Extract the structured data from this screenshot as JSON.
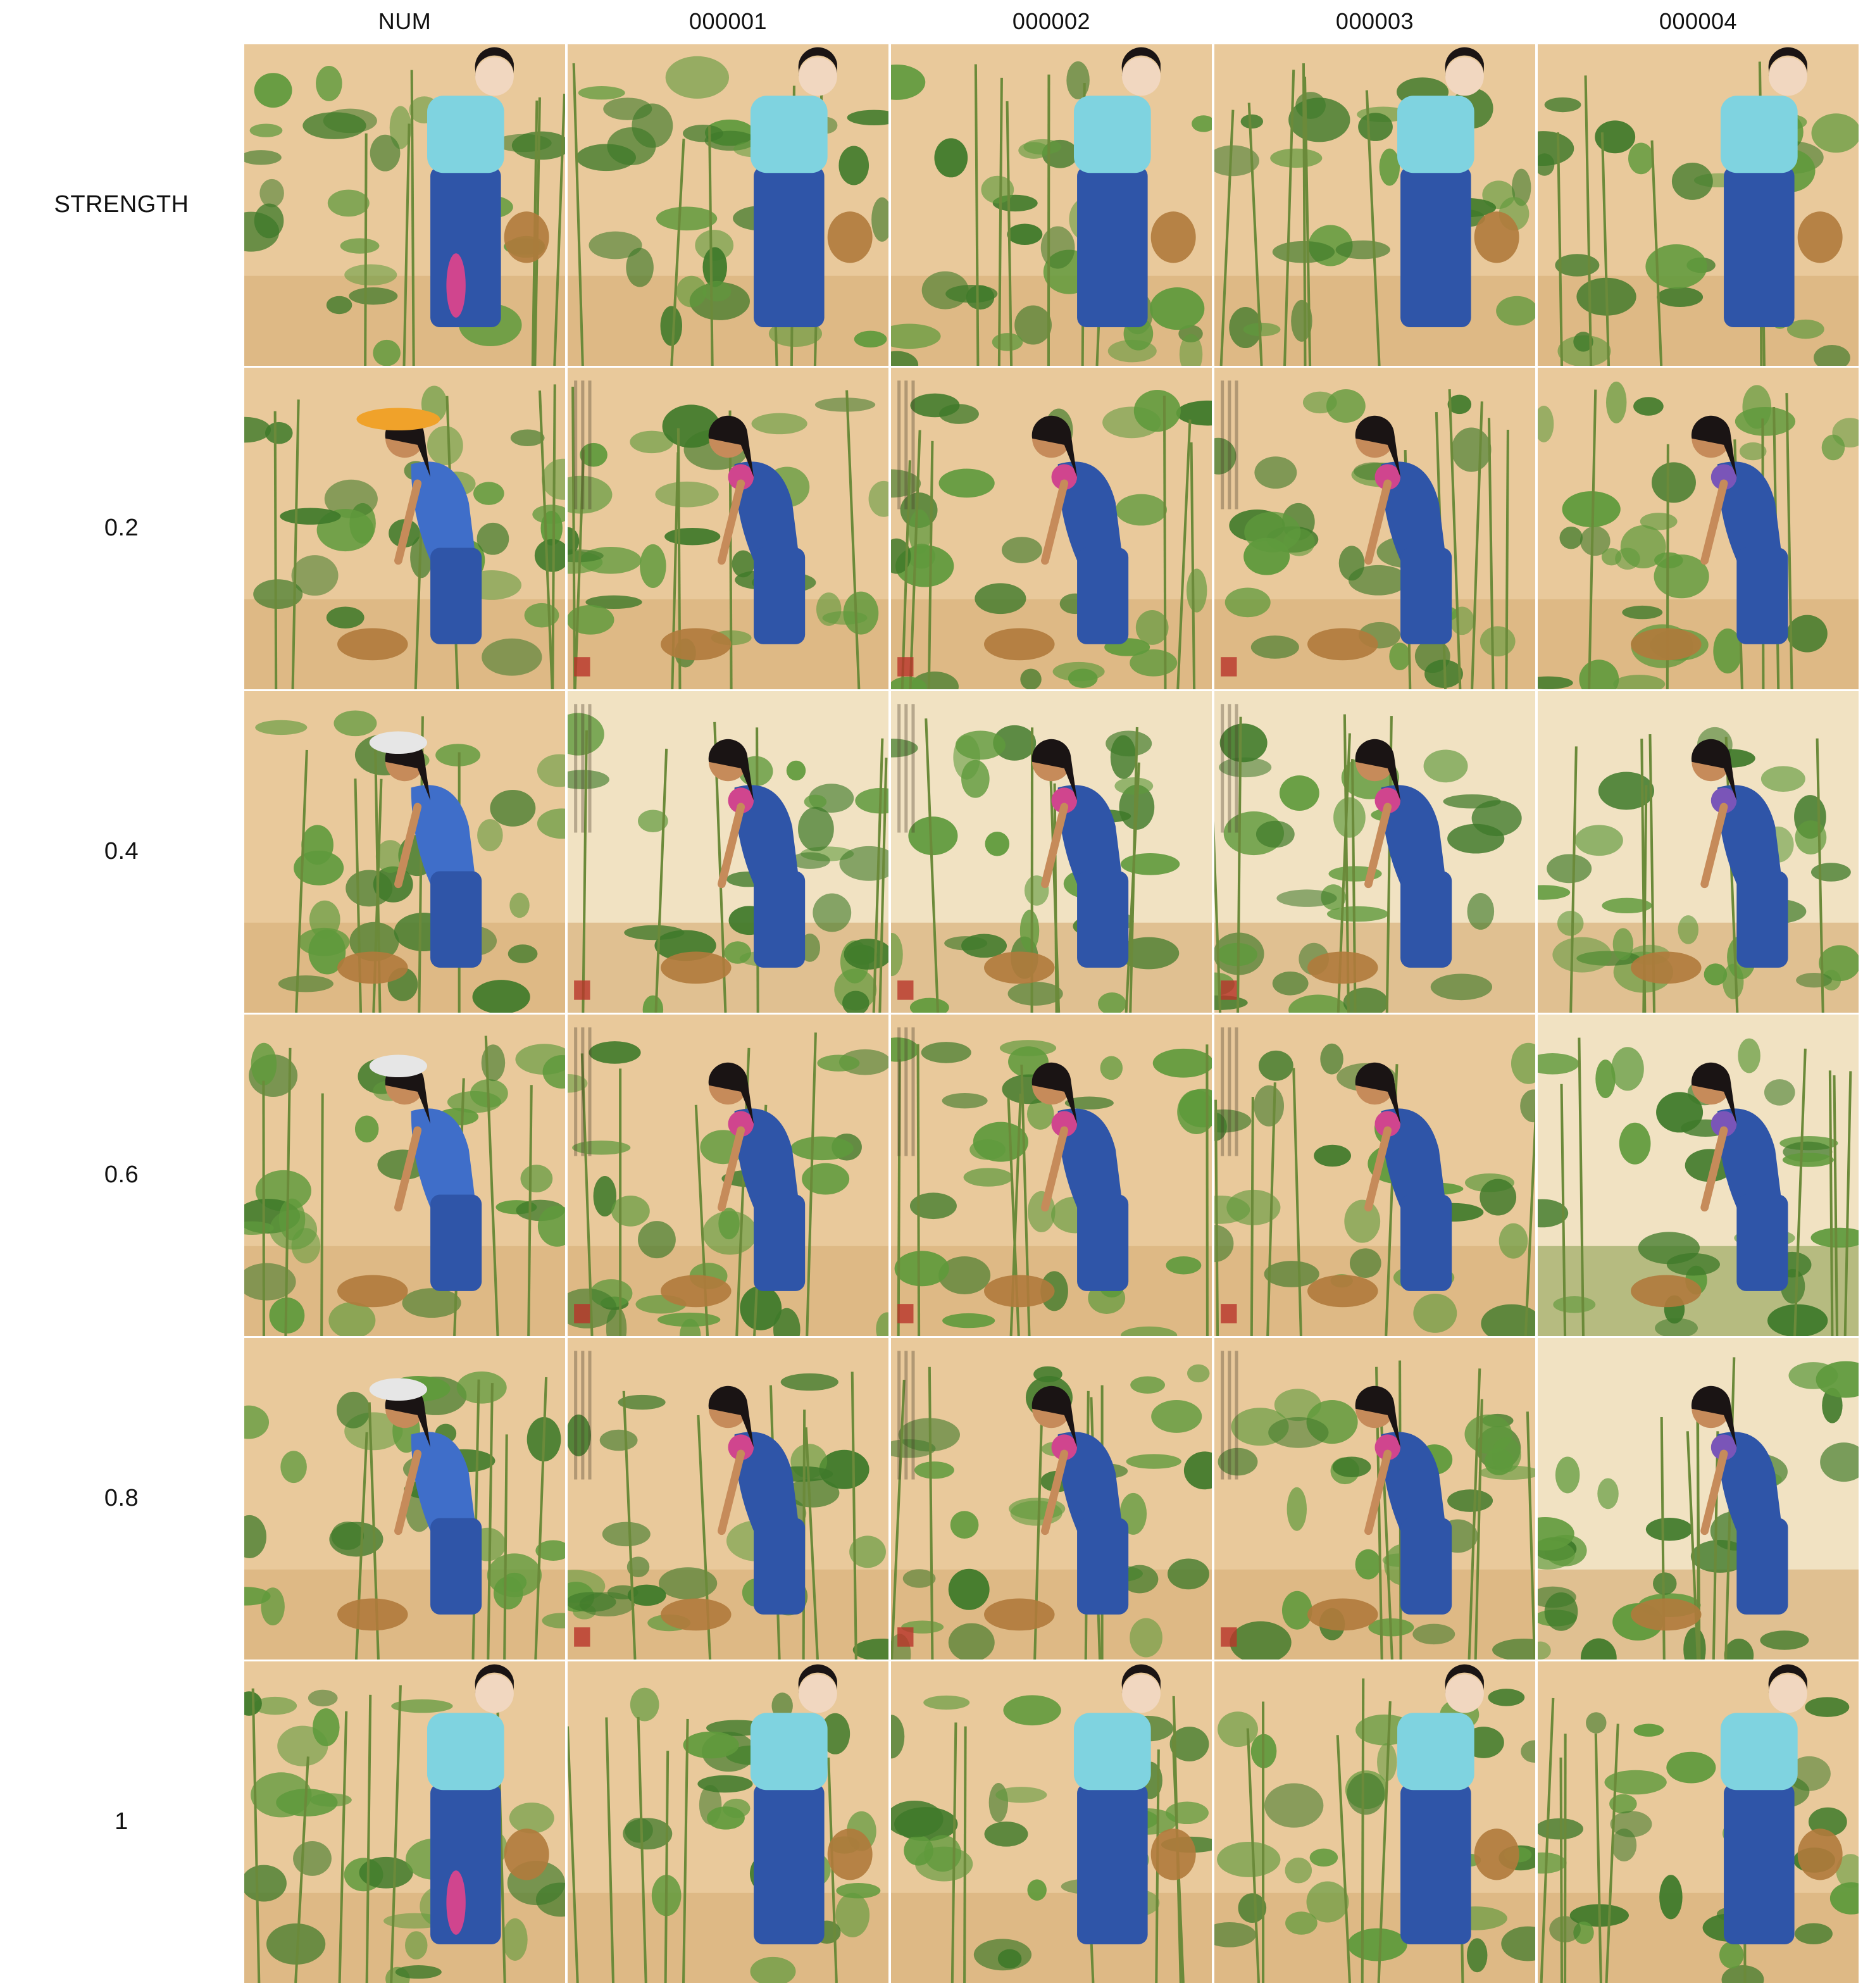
{
  "grid": {
    "corner_label": "",
    "column_headers": [
      "NUM",
      "000001",
      "000002",
      "000003",
      "000004"
    ],
    "row_headers": [
      "STRENGTH",
      "0.2",
      "0.4",
      "0.6",
      "0.8",
      "1"
    ],
    "cells": [
      {
        "row": "STRENGTH",
        "col": "NUM",
        "icon": "generated-illustration-image"
      }
    ]
  },
  "palette": {
    "background": "#ffffff",
    "paper": "#e9c99b",
    "paper_light": "#f1e2c2",
    "foliage": "#5f9a3c",
    "foliage_dark": "#3f7a2a",
    "shirt_light": "#7fd3e0",
    "shirt_blue": "#3f6ec9",
    "pants": "#2f55a8",
    "skin": "#c68b5a",
    "hair": "#1a1414",
    "basket": "#b07a3c",
    "accent_pink": "#d0458e"
  }
}
